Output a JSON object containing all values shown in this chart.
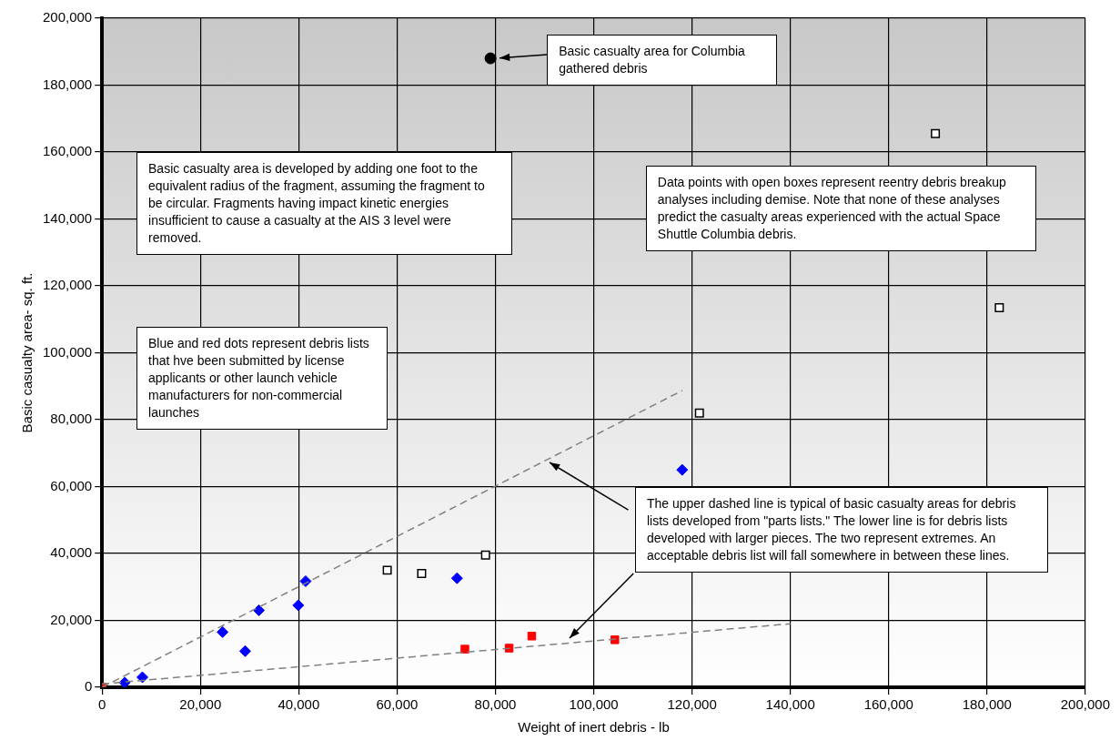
{
  "chart_data": {
    "type": "scatter",
    "xlabel": "Weight of inert debris - lb",
    "ylabel": "Basic casualty area- sq. ft.",
    "xlim": [
      0,
      200000
    ],
    "ylim": [
      0,
      200000
    ],
    "xticks": [
      0,
      {
        "value": 20000,
        "label": "20,000"
      },
      {
        "value": 40000,
        "label": "40,000"
      },
      {
        "value": 60000,
        "label": "60,000"
      },
      {
        "value": 80000,
        "label": "80,000"
      },
      {
        "value": 100000,
        "label": "100,000"
      },
      {
        "value": 120000,
        "label": "120,000"
      },
      {
        "value": 140000,
        "label": "140,000"
      },
      {
        "value": 160000,
        "label": "160,000"
      },
      {
        "value": 180000,
        "label": "180,000"
      },
      {
        "value": 200000,
        "label": "200,000"
      }
    ],
    "yticks": [
      0,
      {
        "value": 20000,
        "label": "20,000"
      },
      {
        "value": 40000,
        "label": "40,000"
      },
      {
        "value": 60000,
        "label": "60,000"
      },
      {
        "value": 80000,
        "label": "80,000"
      },
      {
        "value": 100000,
        "label": "100,000"
      },
      {
        "value": 120000,
        "label": "120,000"
      },
      {
        "value": 140000,
        "label": "140,000"
      },
      {
        "value": 160000,
        "label": "160,000"
      },
      {
        "value": 180000,
        "label": "180,000"
      },
      {
        "value": 200000,
        "label": "200,000"
      }
    ],
    "grid": true,
    "legend": false,
    "series": [
      {
        "type": "line",
        "color": "#808080",
        "line_style": "dashed",
        "marker": "none",
        "x": [
          0,
          118000
        ],
        "values": [
          0,
          88700
        ]
      },
      {
        "type": "line",
        "color": "#808080",
        "line_style": "dashed",
        "marker": "none",
        "x": [
          0,
          140000
        ],
        "values": [
          1000,
          19000
        ]
      },
      {
        "color": "#000000",
        "marker": "circle",
        "x": [
          79000
        ],
        "values": [
          188000
        ]
      },
      {
        "color": "#ffffff",
        "marker": "square",
        "x": [
          58000,
          65000,
          78000,
          121500,
          169500,
          182500
        ],
        "values": [
          35000,
          34000,
          39500,
          82000,
          165500,
          113500
        ]
      },
      {
        "color": "#0000ff",
        "marker": "diamond",
        "x": [
          4600,
          8200,
          24500,
          29100,
          31900,
          39900,
          41400,
          72200,
          118000
        ],
        "values": [
          1400,
          3000,
          16500,
          10800,
          23000,
          24500,
          31700,
          32600,
          65000
        ]
      },
      {
        "color": "#ff0000",
        "marker": "square",
        "x": [
          0,
          73800,
          82800,
          87400,
          104300
        ],
        "values": [
          0,
          11400,
          11700,
          15300,
          14200
        ]
      }
    ],
    "annotations": [
      "Basic casualty area for Columbia gathered debris",
      "Basic casualty area is developed by adding one foot to the equivalent radius of the fragment, assuming the fragment to be circular.  Fragments having impact kinetic energies insufficient to cause a casualty at the AIS 3 level were removed.",
      "Data points with open boxes represent reentry debris breakup analyses including demise. Note that none of these analyses predict the casualty areas experienced with the actual Space Shuttle Columbia debris.",
      "Blue and red dots represent debris lists that hve been submitted by license applicants or other launch vehicle manufacturers for non-commercial launches",
      "The upper dashed line is typical of basic casualty areas for debris lists developed from \"parts lists.\"  The lower line is for debris lists developed with larger pieces.  The two represent extremes.  An acceptable debris list will fall somewhere in between these lines."
    ]
  }
}
